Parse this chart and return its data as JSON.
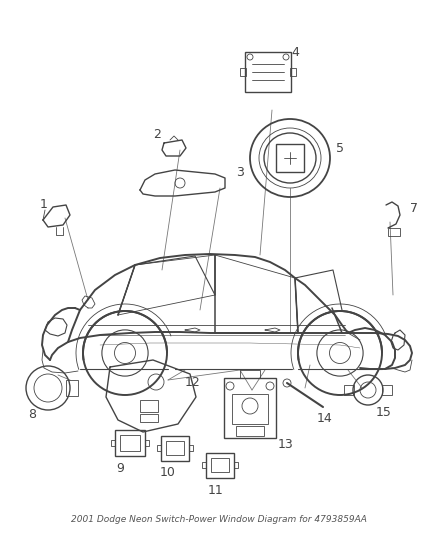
{
  "title": "2001 Dodge Neon Switch-Power Window Diagram for 4793859AA",
  "bg_color": "#ffffff",
  "line_color": "#444444",
  "label_color": "#333333",
  "fig_width": 4.38,
  "fig_height": 5.33,
  "dpi": 100,
  "lw_car": 1.4,
  "lw_part": 1.0,
  "lw_thin": 0.6,
  "lw_leader": 0.6
}
